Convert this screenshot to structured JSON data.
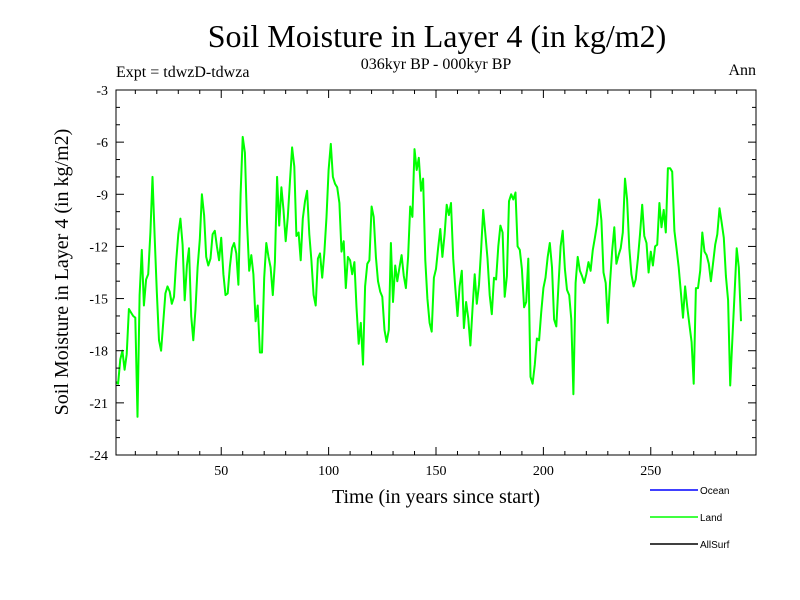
{
  "chart_data": {
    "type": "line",
    "title": "Soil Moisture in Layer 4 (in kg/m2)",
    "subtitle": "036kyr BP - 000kyr BP",
    "expt_label": "Expt = tdwzD-tdwza",
    "season_label": "Ann",
    "xlabel": "Time (in years since start)",
    "ylabel": "Soil Moisture in Layer 4 (in kg/m2)",
    "xlim": [
      1,
      299
    ],
    "ylim": [
      -24,
      -3
    ],
    "xticks": [
      50,
      100,
      150,
      200,
      250
    ],
    "yticks": [
      -24,
      -21,
      -18,
      -15,
      -12,
      -9,
      -6,
      -3
    ],
    "grid": false,
    "legend_position": "bottom-right",
    "series": [
      {
        "name": "Ocean",
        "color": "#0000ff",
        "values": []
      },
      {
        "name": "Land",
        "color": "#00ff00",
        "x_start": 1,
        "x_step": 1,
        "values": [
          -19.8,
          -19.9,
          -18.5,
          -18.0,
          -19.1,
          -18.2,
          -15.6,
          -15.8,
          -16.0,
          -16.1,
          -21.8,
          -14.8,
          -12.2,
          -15.4,
          -13.9,
          -13.6,
          -11.2,
          -8.0,
          -11.5,
          -14.6,
          -17.4,
          -18.0,
          -16.4,
          -14.7,
          -14.3,
          -14.6,
          -15.3,
          -14.9,
          -12.9,
          -11.3,
          -10.4,
          -11.9,
          -15.1,
          -13.1,
          -12.1,
          -16.0,
          -17.4,
          -15.6,
          -13.2,
          -11.6,
          -9.0,
          -10.2,
          -12.6,
          -13.1,
          -12.7,
          -11.3,
          -11.1,
          -12.0,
          -12.8,
          -11.5,
          -13.6,
          -14.8,
          -14.7,
          -13.2,
          -12.1,
          -11.8,
          -12.4,
          -14.2,
          -9.0,
          -5.7,
          -6.6,
          -10.6,
          -13.4,
          -12.5,
          -13.6,
          -16.3,
          -15.4,
          -18.1,
          -18.1,
          -13.8,
          -11.8,
          -12.6,
          -13.2,
          -14.8,
          -12.9,
          -8.0,
          -10.8,
          -8.6,
          -9.9,
          -11.7,
          -10.3,
          -8.2,
          -6.3,
          -7.4,
          -11.4,
          -11.2,
          -12.8,
          -10.4,
          -9.4,
          -8.8,
          -11.3,
          -12.8,
          -14.8,
          -15.4,
          -12.7,
          -12.4,
          -13.8,
          -12.4,
          -10.3,
          -7.6,
          -6.1,
          -8.0,
          -8.4,
          -8.6,
          -9.5,
          -12.3,
          -11.7,
          -14.4,
          -12.6,
          -12.8,
          -13.6,
          -12.9,
          -15.5,
          -17.6,
          -16.4,
          -18.8,
          -14.3,
          -13.0,
          -12.8,
          -9.7,
          -10.3,
          -12.6,
          -14.0,
          -14.6,
          -14.9,
          -16.8,
          -17.5,
          -16.8,
          -11.8,
          -15.2,
          -13.1,
          -14.0,
          -13.2,
          -12.5,
          -13.7,
          -14.4,
          -12.6,
          -9.7,
          -10.3,
          -6.4,
          -7.6,
          -6.9,
          -8.8,
          -8.1,
          -12.8,
          -15.0,
          -16.4,
          -16.9,
          -13.8,
          -13.3,
          -12.1,
          -11.0,
          -12.6,
          -11.3,
          -9.6,
          -10.2,
          -9.5,
          -12.7,
          -14.4,
          -16.0,
          -14.3,
          -13.4,
          -16.7,
          -15.2,
          -16.1,
          -17.7,
          -15.6,
          -13.6,
          -15.3,
          -14.2,
          -12.2,
          -9.9,
          -11.3,
          -12.7,
          -14.8,
          -15.9,
          -13.8,
          -13.9,
          -12.0,
          -10.8,
          -11.2,
          -14.9,
          -13.7,
          -9.4,
          -9.0,
          -9.3,
          -8.9,
          -12.0,
          -12.2,
          -13.3,
          -15.5,
          -15.2,
          -12.7,
          -19.5,
          -19.9,
          -18.8,
          -17.3,
          -17.4,
          -15.8,
          -14.4,
          -13.8,
          -12.6,
          -11.8,
          -13.2,
          -16.2,
          -16.6,
          -14.3,
          -12.0,
          -11.1,
          -13.3,
          -14.5,
          -14.8,
          -16.2,
          -20.5,
          -14.1,
          -12.6,
          -13.4,
          -13.7,
          -14.1,
          -13.6,
          -12.9,
          -13.4,
          -12.2,
          -11.5,
          -10.7,
          -9.3,
          -10.5,
          -13.5,
          -14.1,
          -16.4,
          -14.1,
          -12.3,
          -10.9,
          -13.0,
          -12.5,
          -12.1,
          -11.2,
          -8.1,
          -9.3,
          -12.1,
          -13.6,
          -14.3,
          -13.9,
          -12.7,
          -11.3,
          -9.6,
          -11.4,
          -11.8,
          -13.5,
          -12.3,
          -13.1,
          -12.0,
          -11.9,
          -9.5,
          -10.9,
          -9.9,
          -11.2,
          -7.5,
          -7.5,
          -7.7,
          -11.1,
          -12.1,
          -13.2,
          -14.6,
          -16.1,
          -14.3,
          -15.5,
          -16.5,
          -17.5,
          -19.9,
          -14.4,
          -14.4,
          -13.4,
          -11.2,
          -12.3,
          -12.5,
          -13.0,
          -14.0,
          -13.0,
          -11.9,
          -11.3,
          -9.8,
          -10.6,
          -11.5,
          -13.7,
          -15.1,
          -20.0,
          -17.3,
          -14.8,
          -12.1,
          -13.2,
          -16.3
        ]
      },
      {
        "name": "AllSurf",
        "color": "#000000",
        "values": []
      }
    ]
  }
}
